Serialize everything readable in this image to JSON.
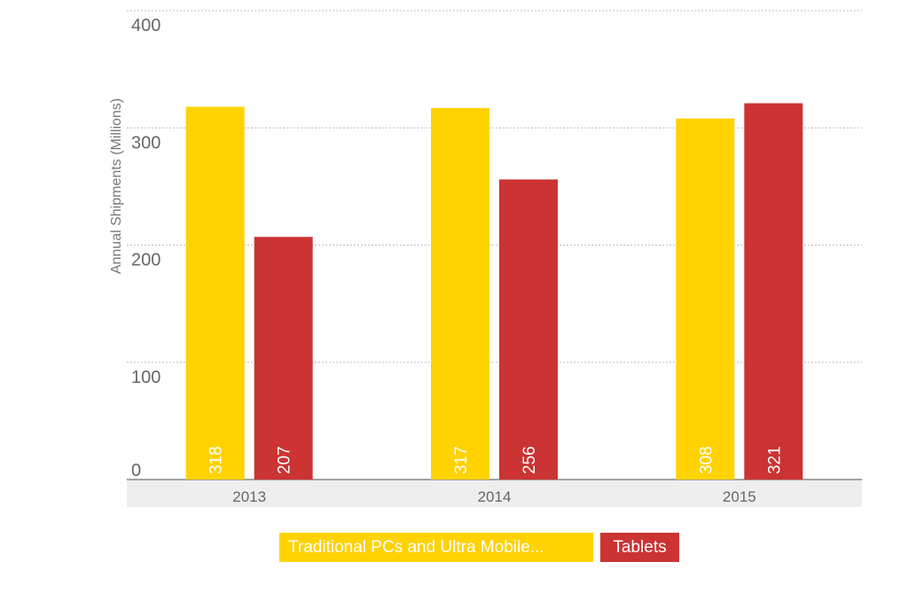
{
  "chart_data": {
    "type": "bar",
    "categories": [
      "2013",
      "2014",
      "2015"
    ],
    "series": [
      {
        "name": "Traditional PCs and Ultra Mobile...",
        "values": [
          318,
          317,
          308
        ],
        "color": "#FFD200"
      },
      {
        "name": "Tablets",
        "values": [
          207,
          256,
          321
        ],
        "color": "#CC3333"
      }
    ],
    "title": "",
    "xlabel": "",
    "ylabel": "Annual Shipments (Millions)",
    "ylim": [
      0,
      400
    ],
    "yticks": [
      0,
      100,
      200,
      300,
      400
    ],
    "grid": true,
    "legend_position": "bottom",
    "data_labels": true
  },
  "colors": {
    "grid": "#bbbbbb",
    "axis": "#888888",
    "category_band": "#eeeeee"
  }
}
